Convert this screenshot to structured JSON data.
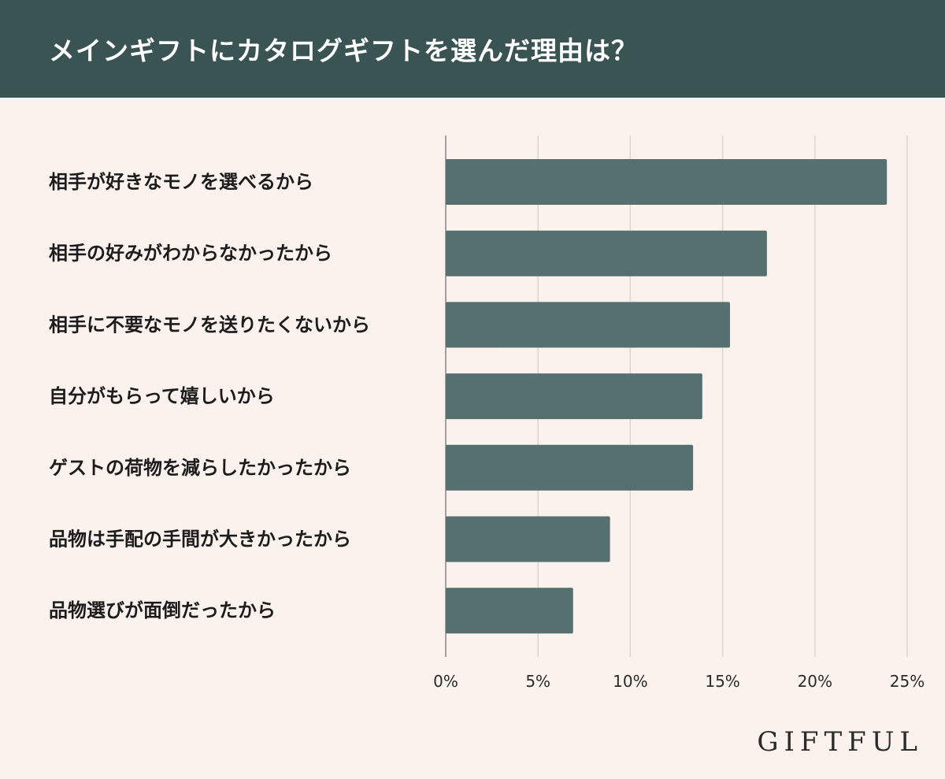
{
  "header": {
    "title": "メインギフトにカタログギフトを選んだ理由は？"
  },
  "brand": {
    "name": "GIFTFUL"
  },
  "colors": {
    "header_bg": "#3a5453",
    "page_bg": "#fbf2ee",
    "bar": "#55706e",
    "grid": "#ddd6d2",
    "axis": "#6b6b6b",
    "text": "#1c1c1c"
  },
  "chart_data": {
    "type": "bar",
    "orientation": "horizontal",
    "title": "メインギフトにカタログギフトを選んだ理由は？",
    "xlabel": "",
    "ylabel": "",
    "categories": [
      "相手が好きなモノを選べるから",
      "相手の好みがわからなかったから",
      "相手に不要なモノを送りたくないから",
      "自分がもらって嬉しいから",
      "ゲストの荷物を減らしたかったから",
      "品物は手配の手間が大きかったから",
      "品物選びが面倒だったから"
    ],
    "values": [
      23.9,
      17.4,
      15.4,
      13.9,
      13.4,
      8.9,
      6.9
    ],
    "xlim": [
      0,
      25
    ],
    "xticks": [
      0,
      5,
      10,
      15,
      20,
      25
    ],
    "tick_labels": [
      "0%",
      "5%",
      "10%",
      "15%",
      "20%",
      "25%"
    ],
    "grid": true,
    "legend": "none"
  }
}
